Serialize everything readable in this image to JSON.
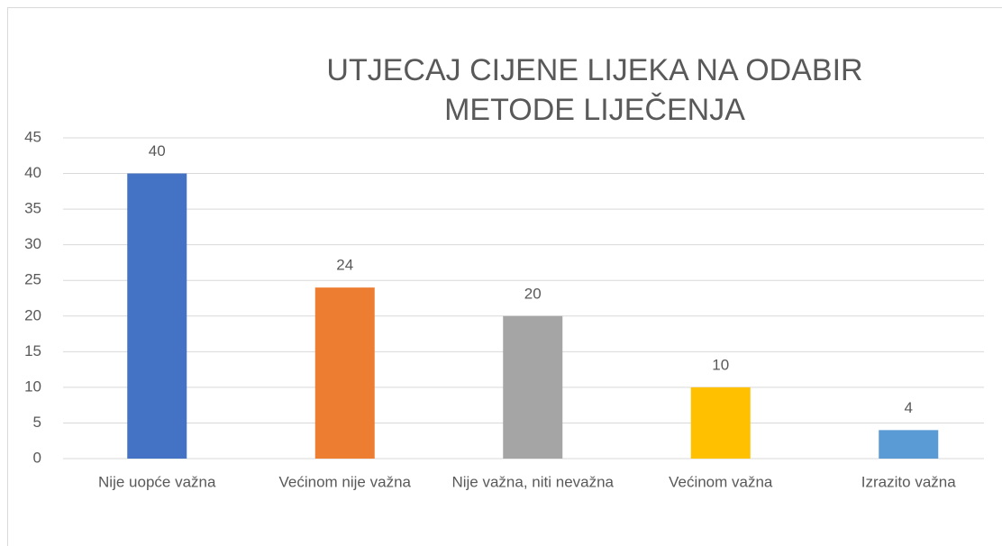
{
  "chart_data": {
    "type": "bar",
    "title": "UTJECAJ CIJENE LIJEKA NA ODABIR METODE LIJEČENJA",
    "categories": [
      "Nije uopće važna",
      "Većinom nije važna",
      "Nije važna, niti nevažna",
      "Većinom važna",
      "Izrazito važna"
    ],
    "values": [
      40,
      24,
      20,
      10,
      4
    ],
    "colors": [
      "#4472c4",
      "#ed7d31",
      "#a5a5a5",
      "#ffc000",
      "#5b9bd5"
    ],
    "ylim": [
      0,
      45
    ],
    "yticks": [
      0,
      5,
      10,
      15,
      20,
      25,
      30,
      35,
      40,
      45
    ],
    "grid": true
  }
}
